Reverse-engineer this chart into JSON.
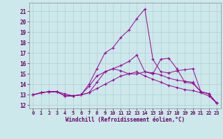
{
  "xlabel": "Windchill (Refroidissement éolien,°C)",
  "bg_color": "#cce8ea",
  "grid_color": "#b0d0d4",
  "line_color": "#990099",
  "xlim": [
    -0.5,
    23.5
  ],
  "ylim": [
    11.7,
    21.8
  ],
  "xticks": [
    0,
    1,
    2,
    3,
    4,
    5,
    6,
    7,
    8,
    9,
    10,
    11,
    12,
    13,
    14,
    15,
    16,
    17,
    18,
    19,
    20,
    21,
    22,
    23
  ],
  "yticks": [
    12,
    13,
    14,
    15,
    16,
    17,
    18,
    19,
    20,
    21
  ],
  "series": [
    [
      13.0,
      13.2,
      13.3,
      13.3,
      13.1,
      12.9,
      13.0,
      13.2,
      14.2,
      15.2,
      15.5,
      15.3,
      15.0,
      15.0,
      15.2,
      15.1,
      14.9,
      14.6,
      14.4,
      14.3,
      14.2,
      13.3,
      13.1,
      12.2
    ],
    [
      13.0,
      13.2,
      13.3,
      13.3,
      12.9,
      12.9,
      13.0,
      14.0,
      15.5,
      17.0,
      17.5,
      18.5,
      19.2,
      20.3,
      21.2,
      16.4,
      15.2,
      15.1,
      15.3,
      15.4,
      15.5,
      13.3,
      13.1,
      12.2
    ],
    [
      13.0,
      13.2,
      13.3,
      13.3,
      12.9,
      12.9,
      13.0,
      13.8,
      14.8,
      15.2,
      15.5,
      15.8,
      16.2,
      16.8,
      15.2,
      15.0,
      16.4,
      16.5,
      15.5,
      14.2,
      14.1,
      13.3,
      13.1,
      12.2
    ],
    [
      13.0,
      13.2,
      13.3,
      13.3,
      12.9,
      12.9,
      13.0,
      13.2,
      13.6,
      14.0,
      14.4,
      14.8,
      15.0,
      15.2,
      14.8,
      14.5,
      14.2,
      13.9,
      13.7,
      13.5,
      13.4,
      13.2,
      12.9,
      12.2
    ]
  ],
  "tick_fontsize": 5,
  "xlabel_fontsize": 5.5
}
